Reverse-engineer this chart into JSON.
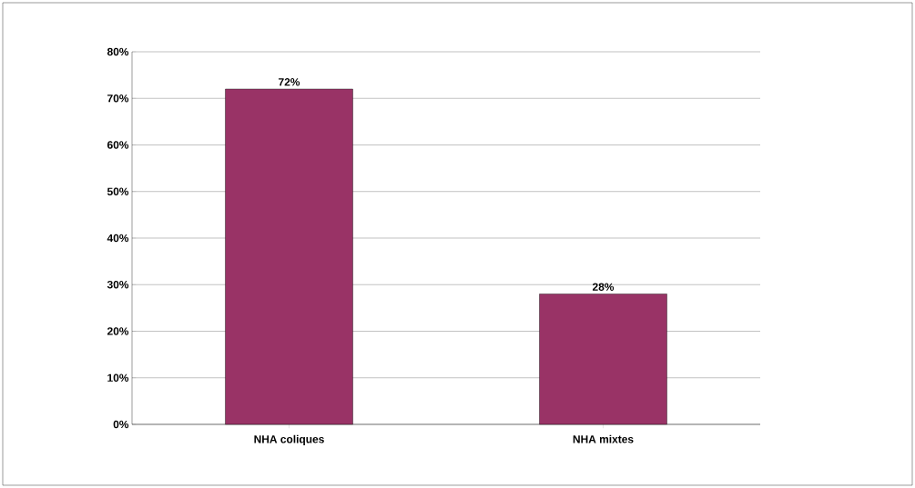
{
  "chart_data": {
    "type": "bar",
    "categories": [
      "NHA coliques",
      "NHA mixtes"
    ],
    "values": [
      72,
      28
    ],
    "color": "#993366",
    "value_labels": [
      "72%",
      "28%"
    ],
    "ylim": [
      0,
      80
    ],
    "yticks": [
      {
        "value": 0,
        "label": "0%"
      },
      {
        "value": 10,
        "label": "10%"
      },
      {
        "value": 20,
        "label": "20%"
      },
      {
        "value": 30,
        "label": "30%"
      },
      {
        "value": 40,
        "label": "40%"
      },
      {
        "value": 50,
        "label": "50%"
      },
      {
        "value": 60,
        "label": "60%"
      },
      {
        "value": 70,
        "label": "70%"
      },
      {
        "value": 80,
        "label": "80%"
      }
    ],
    "grid": "y"
  }
}
